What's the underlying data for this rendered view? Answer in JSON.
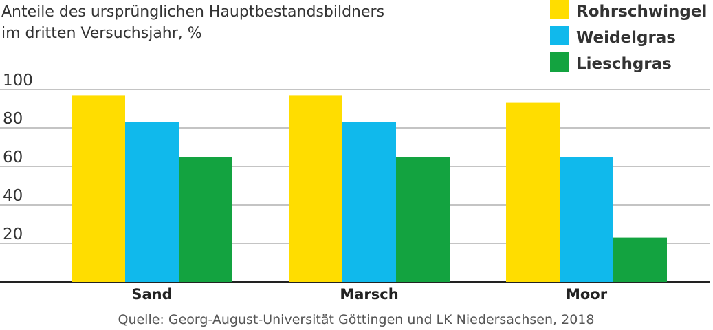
{
  "chart_data": {
    "type": "bar",
    "title": [
      "Anteile des ursprünglichen Hauptbestandsbildners",
      "im dritten Versuchsjahr, %"
    ],
    "categories": [
      "Sand",
      "Marsch",
      "Moor"
    ],
    "series": [
      {
        "name": "Rohrschwingel",
        "color": "#FFDD00",
        "values": [
          97,
          97,
          93
        ]
      },
      {
        "name": "Weidelgras",
        "color": "#10B9EC",
        "values": [
          83,
          83,
          65
        ]
      },
      {
        "name": "Lieschgras",
        "color": "#13A340",
        "values": [
          65,
          65,
          23
        ]
      }
    ],
    "yticks": [
      20,
      40,
      60,
      80,
      100
    ],
    "ylim": [
      0,
      100
    ],
    "grid": true,
    "legend_position": "top-right",
    "source": "Quelle: Georg-August-Universität Göttingen und LK Niedersachsen, 2018"
  }
}
